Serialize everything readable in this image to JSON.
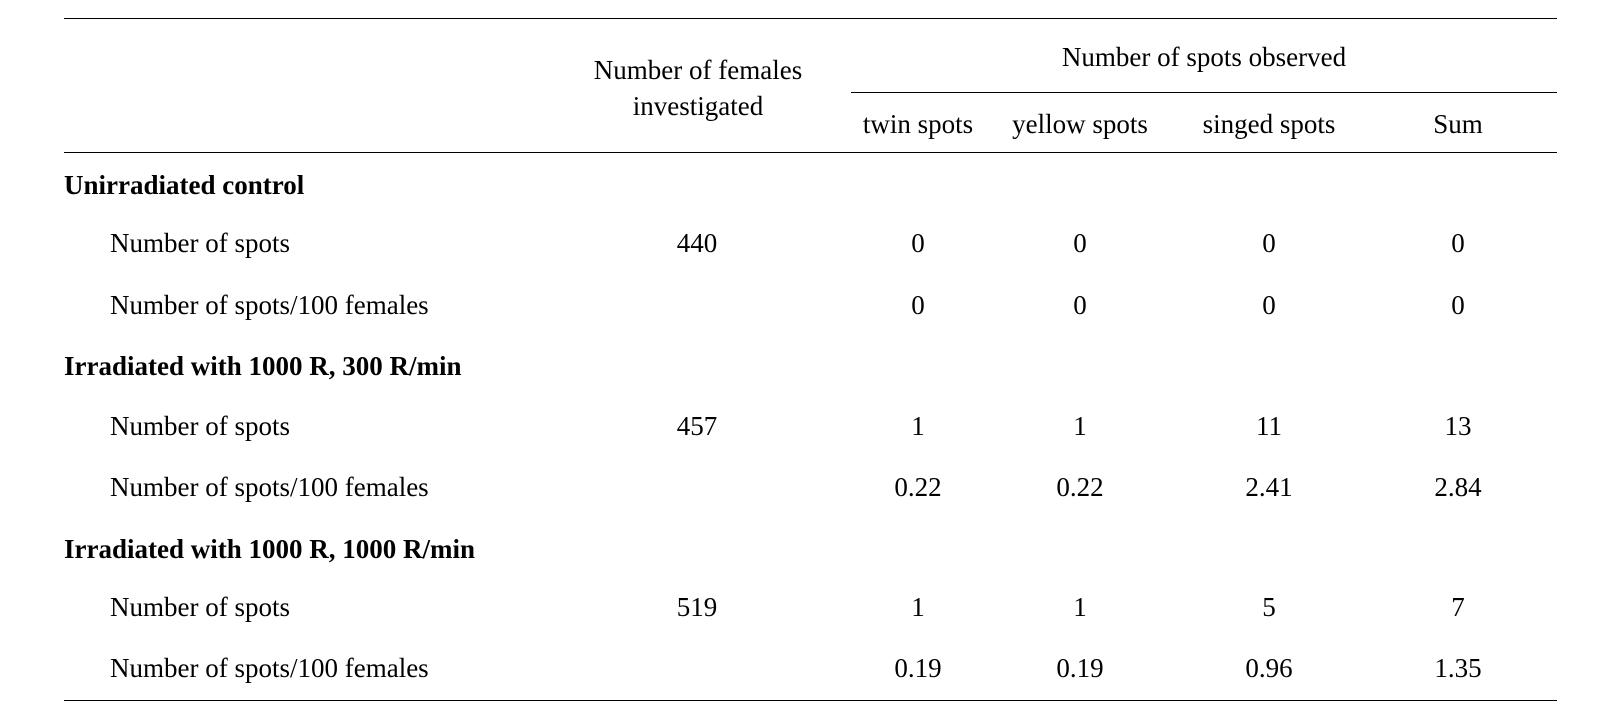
{
  "table": {
    "header": {
      "females_line1": "Number of females",
      "females_line2": "investigated",
      "spots_group": "Number of spots observed",
      "columns": [
        "twin spots",
        "yellow spots",
        "singed spots",
        "Sum"
      ]
    },
    "groups": [
      {
        "title": "Unirradiated  control",
        "rows": [
          {
            "label": "Number of spots",
            "females": "440",
            "values": [
              "0",
              "0",
              "0",
              "0"
            ]
          },
          {
            "label": "Number of spots/100 females",
            "females": "",
            "values": [
              "0",
              "0",
              "0",
              "0"
            ]
          }
        ]
      },
      {
        "title": "Irradiated with 1000 R, 300 R/min",
        "rows": [
          {
            "label": "Number of spots",
            "females": "457",
            "values": [
              "1",
              "1",
              "11",
              "13"
            ]
          },
          {
            "label": "Number of spots/100 females",
            "females": "",
            "values": [
              "0.22",
              "0.22",
              "2.41",
              "2.84"
            ]
          }
        ]
      },
      {
        "title": "Irradiated with 1000 R, 1000 R/min",
        "rows": [
          {
            "label": "Number of spots",
            "females": "519",
            "values": [
              "1",
              "1",
              "5",
              "7"
            ]
          },
          {
            "label": "Number of spots/100 females",
            "females": "",
            "values": [
              "0.19",
              "0.19",
              "0.96",
              "1.35"
            ]
          }
        ]
      }
    ]
  }
}
